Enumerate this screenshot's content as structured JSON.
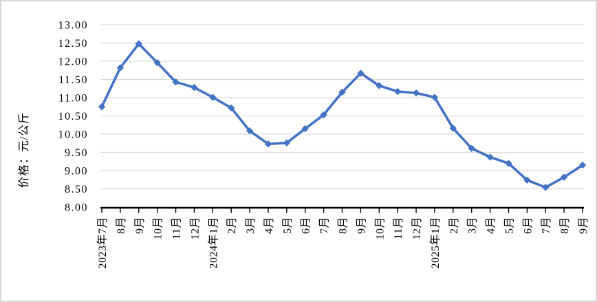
{
  "chart_data": {
    "type": "line",
    "title": "",
    "ylabel": "价格：元/公斤",
    "xlabel": "",
    "legend_position": "none",
    "grid": "horizontal",
    "marker": "diamond",
    "ylim": [
      8.0,
      13.0
    ],
    "ytick_step": 0.5,
    "yticks": [
      "13.00",
      "12.50",
      "12.00",
      "11.50",
      "11.00",
      "10.50",
      "10.00",
      "9.50",
      "9.00",
      "8.50",
      "8.00"
    ],
    "categories": [
      "2023年7月",
      "8月",
      "9月",
      "10月",
      "11月",
      "12月",
      "2024年1月",
      "2月",
      "3月",
      "4月",
      "5月",
      "6月",
      "7月",
      "8月",
      "9月",
      "10月",
      "11月",
      "12月",
      "2025年1月",
      "2月",
      "3月",
      "4月",
      "5月",
      "6月",
      "7月",
      "8月",
      "9月"
    ],
    "values": [
      10.75,
      11.82,
      12.48,
      11.96,
      11.43,
      11.28,
      11.01,
      10.72,
      10.09,
      9.73,
      9.76,
      10.15,
      10.53,
      11.15,
      11.67,
      11.33,
      11.17,
      11.13,
      11.01,
      10.16,
      9.61,
      9.37,
      9.2,
      8.74,
      8.54,
      8.82,
      9.15
    ],
    "line_color": "#4472C4",
    "gridline_color": "#D9D9D9",
    "axis_color": "#000000",
    "background_color": "#FFFFFF",
    "border_color": "#D6D6D6"
  }
}
